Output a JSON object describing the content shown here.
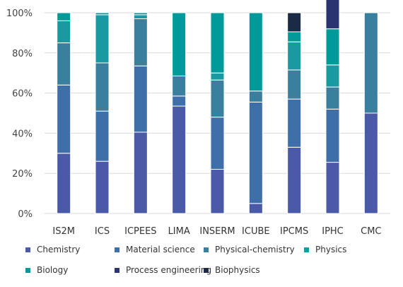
{
  "chart_data": {
    "type": "bar",
    "stacked": true,
    "categories": [
      "IS2M",
      "ICS",
      "ICPEES",
      "LIMA",
      "INSERM",
      "ICUBE",
      "IPCMS",
      "IPHC",
      "CMC"
    ],
    "ylim": [
      0,
      100
    ],
    "yticks": [
      "0%",
      "20%",
      "40%",
      "60%",
      "80%",
      "100%"
    ],
    "grid": "horizontal",
    "legend_position": "bottom",
    "series": [
      {
        "name": "Chemistry",
        "color": "#4a5aa8",
        "values": [
          30,
          26,
          40.5,
          53.5,
          22,
          5,
          33,
          25.5,
          50
        ]
      },
      {
        "name": "Material science",
        "color": "#3f6fa8",
        "values": [
          34,
          25,
          33,
          5,
          26,
          50.5,
          24,
          26.5,
          0
        ]
      },
      {
        "name": "Physical-chemistry",
        "color": "#3a7f9e",
        "values": [
          21,
          24,
          23.5,
          10,
          18.5,
          5.5,
          14.5,
          11,
          50
        ]
      },
      {
        "name": "Physics",
        "color": "#1a9aa0",
        "values": [
          11,
          24,
          2,
          0,
          3.5,
          0,
          14,
          11,
          0
        ]
      },
      {
        "name": "Biology",
        "color": "#009a9a",
        "values": [
          4,
          1,
          1,
          31.5,
          30,
          39,
          5,
          18,
          0
        ]
      },
      {
        "name": "Process engineering",
        "color": "#2a3470",
        "values": [
          0,
          0,
          0,
          0,
          0,
          0,
          0,
          18,
          0
        ]
      },
      {
        "name": "Biophysics",
        "color": "#1c2b45",
        "values": [
          0,
          0,
          0,
          0,
          0,
          0,
          9.5,
          0,
          0
        ]
      }
    ]
  }
}
